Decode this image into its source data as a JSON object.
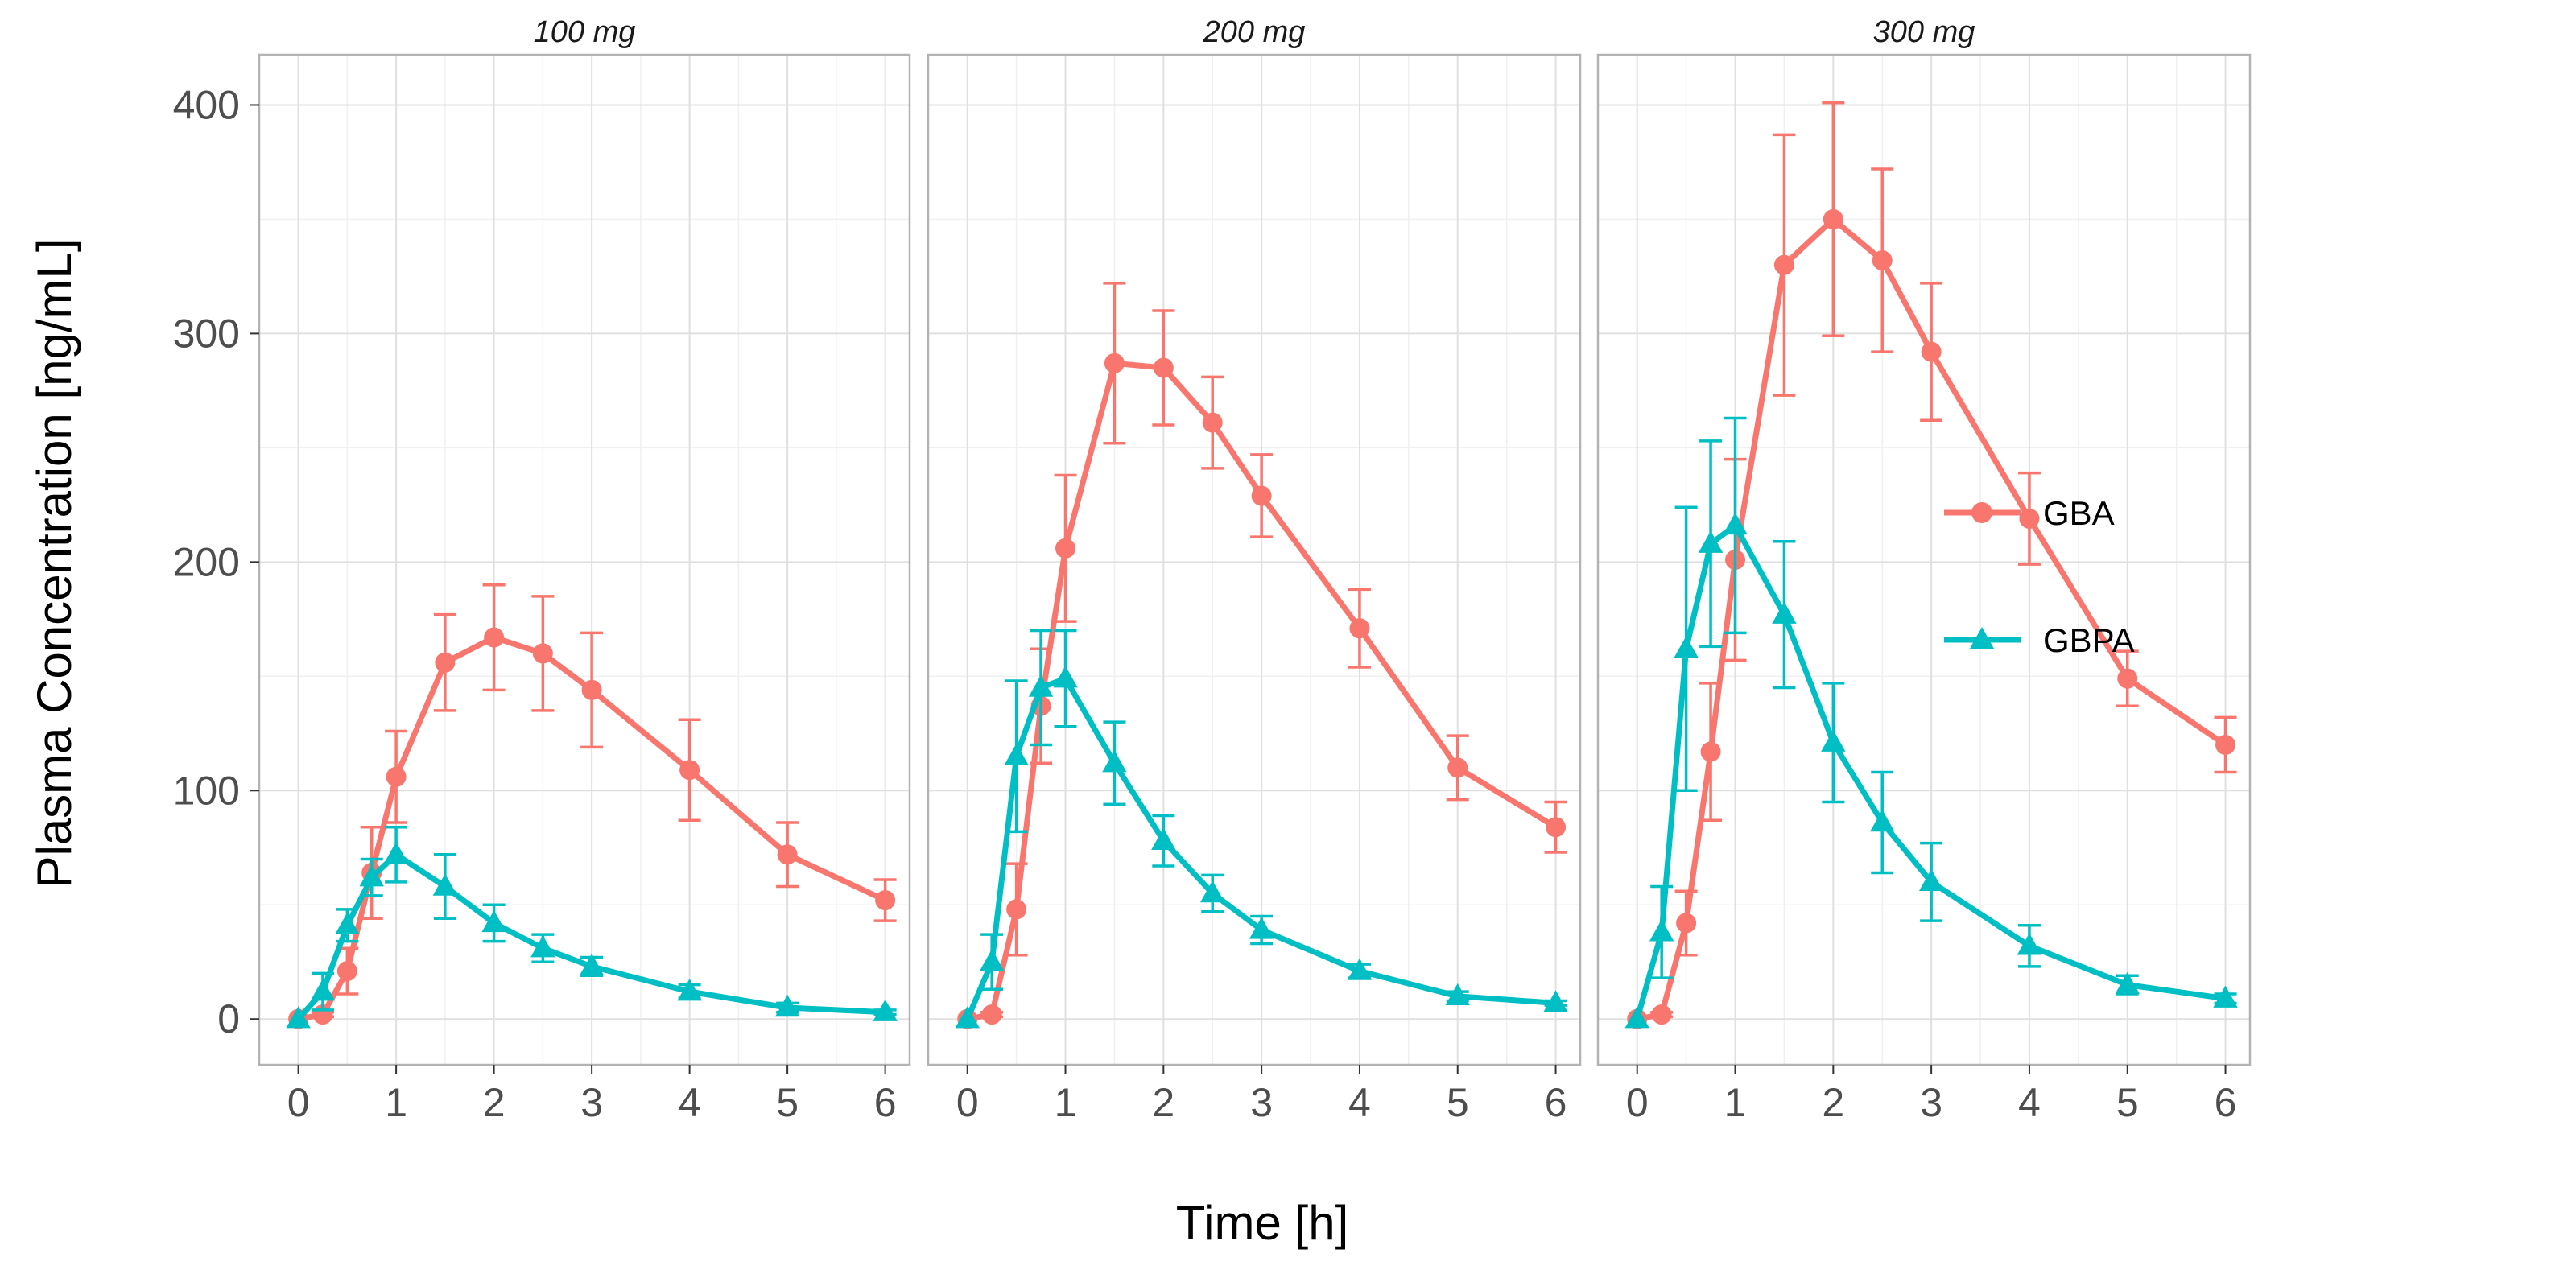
{
  "chart_data": {
    "type": "line",
    "xlabel": "Time [h]",
    "ylabel": "Plasma Concentration [ng/mL]",
    "xlim": [
      -0.4,
      6.25
    ],
    "ylim": [
      -20,
      422
    ],
    "x_ticks": [
      0,
      1,
      2,
      3,
      4,
      5,
      6
    ],
    "x_tick_labels": [
      "0",
      "1",
      "2",
      "3",
      "4",
      "5",
      "6"
    ],
    "y_ticks": [
      0,
      100,
      200,
      300,
      400
    ],
    "y_tick_labels": [
      "0",
      "100",
      "200",
      "300",
      "400"
    ],
    "legend_position": "right",
    "colors": {
      "GBA": "#F8766D",
      "GBPA": "#00BFC4"
    },
    "series_meta": [
      {
        "name": "GBA",
        "marker": "circle"
      },
      {
        "name": "GBPA",
        "marker": "triangle"
      }
    ],
    "panels": [
      {
        "title": "100 mg",
        "series": [
          {
            "name": "GBA",
            "x": [
              0,
              0.25,
              0.5,
              0.75,
              1,
              1.5,
              2,
              2.5,
              3,
              4,
              5,
              6
            ],
            "y": [
              0,
              2,
              21,
              64,
              106,
              156,
              167,
              160,
              144,
              109,
              72,
              52
            ],
            "err": [
              0,
              1,
              10,
              20,
              20,
              21,
              23,
              25,
              25,
              22,
              14,
              9
            ]
          },
          {
            "name": "GBPA",
            "x": [
              0,
              0.25,
              0.5,
              0.75,
              1,
              1.5,
              2,
              2.5,
              3,
              4,
              5,
              6
            ],
            "y": [
              0,
              12,
              41,
              62,
              72,
              58,
              42,
              31,
              23,
              12,
              5,
              3
            ],
            "err": [
              0,
              8,
              7,
              8,
              12,
              14,
              8,
              6,
              4,
              3,
              2,
              1
            ]
          }
        ]
      },
      {
        "title": "200 mg",
        "series": [
          {
            "name": "GBA",
            "x": [
              0,
              0.25,
              0.5,
              0.75,
              1,
              1.5,
              2,
              2.5,
              3,
              4,
              5,
              6
            ],
            "y": [
              0,
              2,
              48,
              137,
              206,
              287,
              285,
              261,
              229,
              171,
              110,
              84
            ],
            "err": [
              0,
              1,
              20,
              25,
              32,
              35,
              25,
              20,
              18,
              17,
              14,
              11
            ]
          },
          {
            "name": "GBPA",
            "x": [
              0,
              0.25,
              0.5,
              0.75,
              1,
              1.5,
              2,
              2.5,
              3,
              4,
              5,
              6
            ],
            "y": [
              0,
              25,
              115,
              145,
              149,
              112,
              78,
              55,
              39,
              21,
              10,
              7
            ],
            "err": [
              0,
              12,
              33,
              25,
              21,
              18,
              11,
              8,
              6,
              3,
              2,
              1
            ]
          }
        ]
      },
      {
        "title": "300 mg",
        "series": [
          {
            "name": "GBA",
            "x": [
              0,
              0.25,
              0.5,
              0.75,
              1,
              1.5,
              2,
              2.5,
              3,
              4,
              5,
              6
            ],
            "y": [
              0,
              2,
              42,
              117,
              201,
              330,
              350,
              332,
              292,
              219,
              149,
              120
            ],
            "err": [
              0,
              1,
              14,
              30,
              44,
              57,
              51,
              40,
              30,
              20,
              12,
              12
            ]
          },
          {
            "name": "GBPA",
            "x": [
              0,
              0.25,
              0.5,
              0.75,
              1,
              1.5,
              2,
              2.5,
              3,
              4,
              5,
              6
            ],
            "y": [
              0,
              38,
              162,
              208,
              216,
              177,
              121,
              86,
              60,
              32,
              15,
              9
            ],
            "err": [
              0,
              20,
              62,
              45,
              47,
              32,
              26,
              22,
              17,
              9,
              4,
              2
            ]
          }
        ]
      }
    ]
  }
}
